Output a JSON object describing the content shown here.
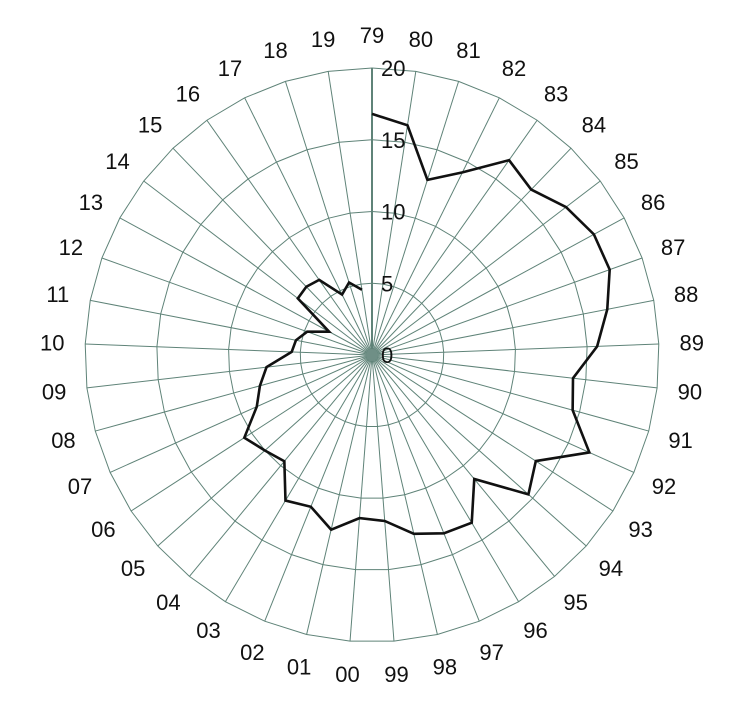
{
  "chart_data": {
    "type": "radar",
    "title": "",
    "categories": [
      "79",
      "80",
      "81",
      "82",
      "83",
      "84",
      "85",
      "86",
      "87",
      "88",
      "89",
      "90",
      "91",
      "92",
      "93",
      "94",
      "95",
      "96",
      "97",
      "98",
      "99",
      "00",
      "01",
      "02",
      "03",
      "04",
      "05",
      "06",
      "07",
      "08",
      "09",
      "10",
      "11",
      "12",
      "13",
      "14",
      "15",
      "16",
      "17",
      "18",
      "19"
    ],
    "series": [
      {
        "values": [
          16.8,
          16.2,
          12.8,
          14.2,
          16.6,
          16.0,
          17.0,
          17.6,
          17.6,
          16.7,
          15.7,
          14.1,
          14.5,
          16.6,
          13.6,
          14.6,
          11.2,
          13.6,
          13.4,
          12.8,
          11.6,
          11.4,
          12.5,
          11.4,
          11.8,
          9.6,
          10.0,
          10.6,
          8.8,
          8.1,
          7.4,
          5.6,
          5.4,
          4.8,
          3.4,
          6.5,
          6.6,
          6.4,
          4.7,
          5.3,
          4.6
        ]
      }
    ],
    "radial_ticks": [
      0,
      5,
      10,
      15,
      20
    ],
    "rmax": 20,
    "colors": {
      "line": "#111111",
      "grid": "#5f8378",
      "axis": "#5f8378",
      "center": "#6f8f86"
    },
    "grid": true,
    "legend": "none"
  }
}
